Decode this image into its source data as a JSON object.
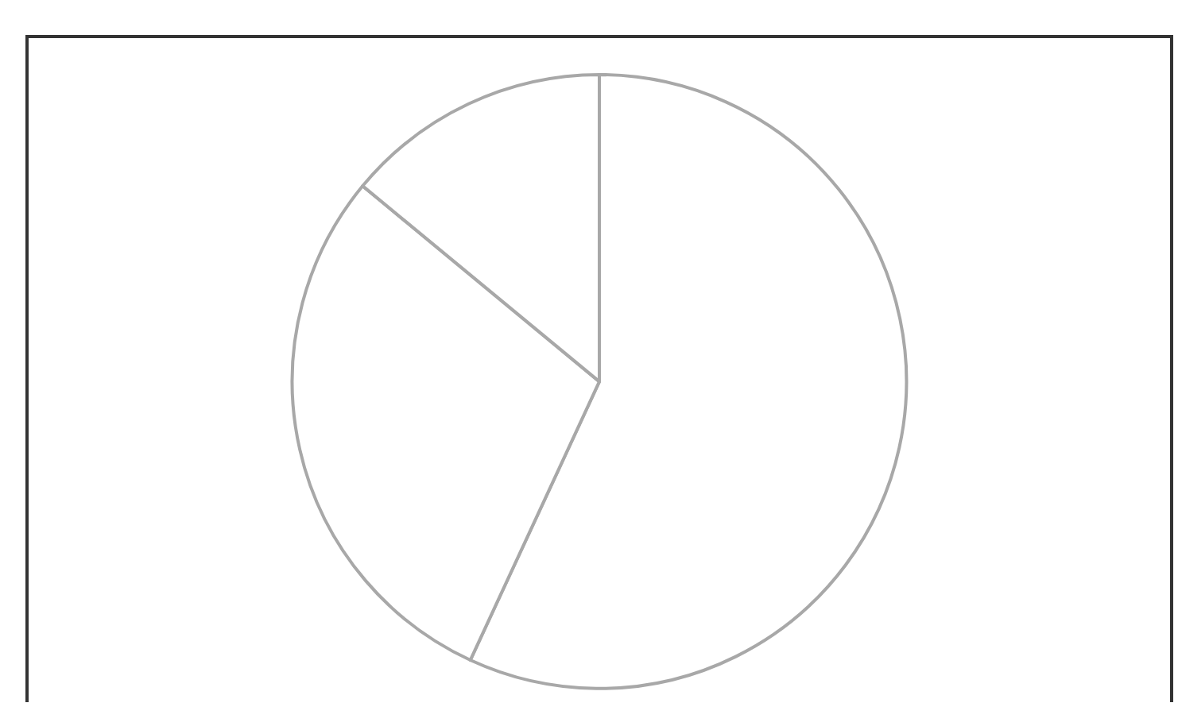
{
  "chart_data": {
    "type": "pie",
    "categories": [
      null,
      null,
      null
    ],
    "values": [
      56.9,
      29.1,
      14.0
    ],
    "colors": [
      "#ffffff",
      "#ffffff",
      "#ffffff"
    ]
  }
}
